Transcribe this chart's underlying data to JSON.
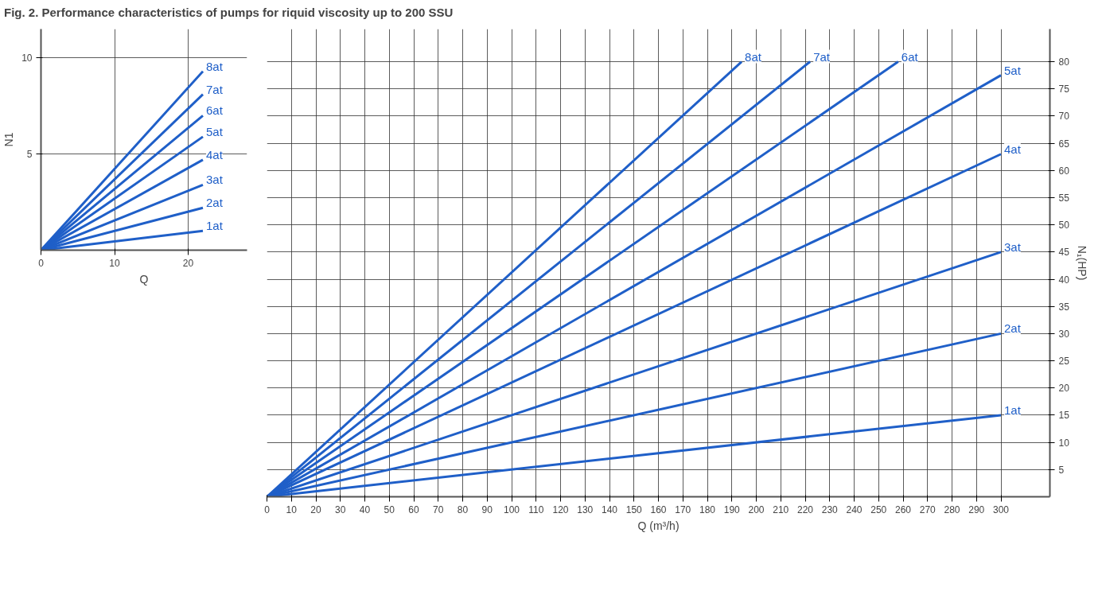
{
  "chart_data": [
    {
      "type": "line",
      "xlabel": "Q",
      "ylabel": "N1",
      "xlim": [
        0,
        28
      ],
      "ylim": [
        0,
        11.5
      ],
      "xticks": [
        0,
        10,
        20
      ],
      "yticks": [
        5,
        10
      ],
      "grid": true,
      "series": [
        {
          "name": "1at",
          "color": "#1f5fc8",
          "x": [
            0,
            22
          ],
          "values": [
            0,
            1.0
          ]
        },
        {
          "name": "2at",
          "color": "#1f5fc8",
          "x": [
            0,
            22
          ],
          "values": [
            0,
            2.2
          ]
        },
        {
          "name": "3at",
          "color": "#1f5fc8",
          "x": [
            0,
            22
          ],
          "values": [
            0,
            3.4
          ]
        },
        {
          "name": "4at",
          "color": "#1f5fc8",
          "x": [
            0,
            22
          ],
          "values": [
            0,
            4.7
          ]
        },
        {
          "name": "5at",
          "color": "#1f5fc8",
          "x": [
            0,
            22
          ],
          "values": [
            0,
            5.9
          ]
        },
        {
          "name": "6at",
          "color": "#1f5fc8",
          "x": [
            0,
            22
          ],
          "values": [
            0,
            7.0
          ]
        },
        {
          "name": "7at",
          "color": "#1f5fc8",
          "x": [
            0,
            22
          ],
          "values": [
            0,
            8.1
          ]
        },
        {
          "name": "8at",
          "color": "#1f5fc8",
          "x": [
            0,
            22
          ],
          "values": [
            0,
            9.3
          ]
        }
      ]
    },
    {
      "type": "line",
      "title": "Fig. 2. Performance characteristics of pumps for riquid viscosity up to 200 SSU",
      "xlabel": "Q (m³/h)",
      "ylabel": "N₁(HP)",
      "xlim": [
        0,
        320
      ],
      "ylim": [
        0,
        86
      ],
      "xticks": [
        0,
        10,
        20,
        30,
        40,
        50,
        60,
        70,
        80,
        90,
        100,
        110,
        120,
        130,
        140,
        150,
        160,
        170,
        180,
        190,
        200,
        210,
        220,
        230,
        240,
        250,
        260,
        270,
        280,
        290,
        300
      ],
      "yticks": [
        5,
        10,
        15,
        20,
        25,
        30,
        35,
        40,
        45,
        50,
        55,
        60,
        65,
        70,
        75,
        80
      ],
      "grid": true,
      "series": [
        {
          "name": "1at",
          "color": "#1f5fc8",
          "x": [
            0,
            300
          ],
          "values": [
            0,
            15
          ]
        },
        {
          "name": "2at",
          "color": "#1f5fc8",
          "x": [
            0,
            300
          ],
          "values": [
            0,
            30
          ]
        },
        {
          "name": "3at",
          "color": "#1f5fc8",
          "x": [
            0,
            300
          ],
          "values": [
            0,
            45
          ]
        },
        {
          "name": "4at",
          "color": "#1f5fc8",
          "x": [
            0,
            300
          ],
          "values": [
            0,
            63
          ]
        },
        {
          "name": "5at",
          "color": "#1f5fc8",
          "x": [
            0,
            300
          ],
          "values": [
            0,
            77.5
          ]
        },
        {
          "name": "6at",
          "color": "#1f5fc8",
          "x": [
            0,
            258
          ],
          "values": [
            0,
            80
          ]
        },
        {
          "name": "7at",
          "color": "#1f5fc8",
          "x": [
            0,
            222
          ],
          "values": [
            0,
            80
          ]
        },
        {
          "name": "8at",
          "color": "#1f5fc8",
          "x": [
            0,
            194
          ],
          "values": [
            0,
            80
          ]
        }
      ]
    }
  ]
}
